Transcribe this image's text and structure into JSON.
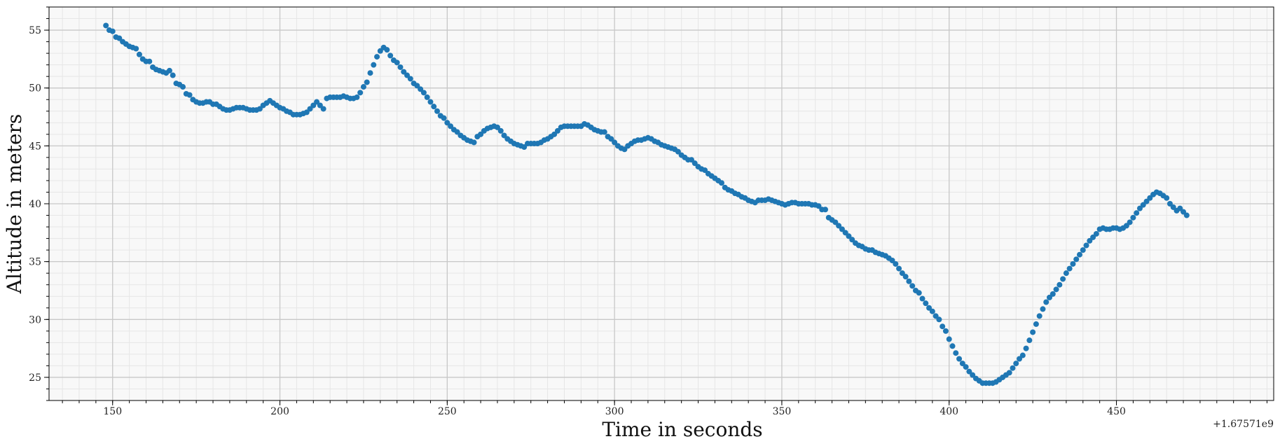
{
  "chart_data": {
    "type": "scatter",
    "xlabel": "Time in seconds",
    "ylabel": "Altitude in meters",
    "x_offset_label": "+1.67571e9",
    "xlim": [
      131,
      497
    ],
    "ylim": [
      23,
      57
    ],
    "x_ticks": [
      150,
      200,
      250,
      300,
      350,
      400,
      450
    ],
    "y_ticks": [
      25,
      30,
      35,
      40,
      45,
      50,
      55
    ],
    "x_minor_step": 5,
    "y_minor_step": 1,
    "grid": true,
    "marker_color": "#1f77b4",
    "background_color": "#f8f8f8",
    "series": [
      {
        "points": [
          [
            148,
            55.4
          ],
          [
            149,
            55.0
          ],
          [
            150,
            54.9
          ],
          [
            151,
            54.4
          ],
          [
            152,
            54.3
          ],
          [
            153,
            54.0
          ],
          [
            154,
            53.8
          ],
          [
            155,
            53.6
          ],
          [
            156,
            53.5
          ],
          [
            157,
            53.4
          ],
          [
            158,
            52.9
          ],
          [
            159,
            52.5
          ],
          [
            160,
            52.3
          ],
          [
            161,
            52.3
          ],
          [
            162,
            51.8
          ],
          [
            163,
            51.6
          ],
          [
            164,
            51.5
          ],
          [
            165,
            51.4
          ],
          [
            166,
            51.3
          ],
          [
            167,
            51.5
          ],
          [
            168,
            51.1
          ],
          [
            169,
            50.4
          ],
          [
            170,
            50.3
          ],
          [
            171,
            50.1
          ],
          [
            172,
            49.5
          ],
          [
            173,
            49.4
          ],
          [
            174,
            49.0
          ],
          [
            175,
            48.8
          ],
          [
            176,
            48.7
          ],
          [
            177,
            48.7
          ],
          [
            178,
            48.8
          ],
          [
            179,
            48.8
          ],
          [
            180,
            48.6
          ],
          [
            181,
            48.6
          ],
          [
            182,
            48.4
          ],
          [
            183,
            48.2
          ],
          [
            184,
            48.1
          ],
          [
            185,
            48.1
          ],
          [
            186,
            48.2
          ],
          [
            187,
            48.3
          ],
          [
            188,
            48.3
          ],
          [
            189,
            48.3
          ],
          [
            190,
            48.2
          ],
          [
            191,
            48.1
          ],
          [
            192,
            48.1
          ],
          [
            193,
            48.1
          ],
          [
            194,
            48.2
          ],
          [
            195,
            48.5
          ],
          [
            196,
            48.7
          ],
          [
            197,
            48.9
          ],
          [
            198,
            48.7
          ],
          [
            199,
            48.5
          ],
          [
            200,
            48.3
          ],
          [
            201,
            48.2
          ],
          [
            202,
            48.0
          ],
          [
            203,
            47.9
          ],
          [
            204,
            47.7
          ],
          [
            205,
            47.7
          ],
          [
            206,
            47.7
          ],
          [
            207,
            47.8
          ],
          [
            208,
            47.9
          ],
          [
            209,
            48.2
          ],
          [
            210,
            48.5
          ],
          [
            211,
            48.8
          ],
          [
            212,
            48.5
          ],
          [
            213,
            48.2
          ],
          [
            214,
            49.1
          ],
          [
            215,
            49.2
          ],
          [
            216,
            49.2
          ],
          [
            217,
            49.2
          ],
          [
            218,
            49.2
          ],
          [
            219,
            49.3
          ],
          [
            220,
            49.2
          ],
          [
            221,
            49.1
          ],
          [
            222,
            49.1
          ],
          [
            223,
            49.2
          ],
          [
            224,
            49.6
          ],
          [
            225,
            50.1
          ],
          [
            226,
            50.5
          ],
          [
            227,
            51.3
          ],
          [
            228,
            52.0
          ],
          [
            229,
            52.7
          ],
          [
            230,
            53.2
          ],
          [
            231,
            53.5
          ],
          [
            232,
            53.3
          ],
          [
            233,
            52.8
          ],
          [
            234,
            52.4
          ],
          [
            235,
            52.2
          ],
          [
            236,
            51.8
          ],
          [
            237,
            51.4
          ],
          [
            238,
            51.1
          ],
          [
            239,
            50.8
          ],
          [
            240,
            50.4
          ],
          [
            241,
            50.2
          ],
          [
            242,
            49.9
          ],
          [
            243,
            49.6
          ],
          [
            244,
            49.2
          ],
          [
            245,
            48.8
          ],
          [
            246,
            48.4
          ],
          [
            247,
            48.0
          ],
          [
            248,
            47.6
          ],
          [
            249,
            47.4
          ],
          [
            250,
            47.0
          ],
          [
            251,
            46.7
          ],
          [
            252,
            46.4
          ],
          [
            253,
            46.2
          ],
          [
            254,
            45.9
          ],
          [
            255,
            45.7
          ],
          [
            256,
            45.5
          ],
          [
            257,
            45.4
          ],
          [
            258,
            45.3
          ],
          [
            259,
            45.8
          ],
          [
            260,
            46.0
          ],
          [
            261,
            46.3
          ],
          [
            262,
            46.5
          ],
          [
            263,
            46.6
          ],
          [
            264,
            46.7
          ],
          [
            265,
            46.6
          ],
          [
            266,
            46.3
          ],
          [
            267,
            45.9
          ],
          [
            268,
            45.6
          ],
          [
            269,
            45.4
          ],
          [
            270,
            45.2
          ],
          [
            271,
            45.1
          ],
          [
            272,
            45.0
          ],
          [
            273,
            44.9
          ],
          [
            274,
            45.2
          ],
          [
            275,
            45.2
          ],
          [
            276,
            45.2
          ],
          [
            277,
            45.2
          ],
          [
            278,
            45.3
          ],
          [
            279,
            45.5
          ],
          [
            280,
            45.6
          ],
          [
            281,
            45.8
          ],
          [
            282,
            46.0
          ],
          [
            283,
            46.3
          ],
          [
            284,
            46.6
          ],
          [
            285,
            46.7
          ],
          [
            286,
            46.7
          ],
          [
            287,
            46.7
          ],
          [
            288,
            46.7
          ],
          [
            289,
            46.7
          ],
          [
            290,
            46.7
          ],
          [
            291,
            46.9
          ],
          [
            292,
            46.8
          ],
          [
            293,
            46.6
          ],
          [
            294,
            46.4
          ],
          [
            295,
            46.3
          ],
          [
            296,
            46.2
          ],
          [
            297,
            46.2
          ],
          [
            298,
            45.8
          ],
          [
            299,
            45.6
          ],
          [
            300,
            45.3
          ],
          [
            301,
            45.0
          ],
          [
            302,
            44.8
          ],
          [
            303,
            44.7
          ],
          [
            304,
            45.0
          ],
          [
            305,
            45.2
          ],
          [
            306,
            45.4
          ],
          [
            307,
            45.5
          ],
          [
            308,
            45.5
          ],
          [
            309,
            45.6
          ],
          [
            310,
            45.7
          ],
          [
            311,
            45.6
          ],
          [
            312,
            45.4
          ],
          [
            313,
            45.3
          ],
          [
            314,
            45.1
          ],
          [
            315,
            45.0
          ],
          [
            316,
            44.9
          ],
          [
            317,
            44.8
          ],
          [
            318,
            44.7
          ],
          [
            319,
            44.5
          ],
          [
            320,
            44.2
          ],
          [
            321,
            44.0
          ],
          [
            322,
            43.8
          ],
          [
            323,
            43.8
          ],
          [
            324,
            43.5
          ],
          [
            325,
            43.2
          ],
          [
            326,
            43.0
          ],
          [
            327,
            42.9
          ],
          [
            328,
            42.6
          ],
          [
            329,
            42.4
          ],
          [
            330,
            42.2
          ],
          [
            331,
            42.0
          ],
          [
            332,
            41.8
          ],
          [
            333,
            41.4
          ],
          [
            334,
            41.2
          ],
          [
            335,
            41.1
          ],
          [
            336,
            40.9
          ],
          [
            337,
            40.8
          ],
          [
            338,
            40.6
          ],
          [
            339,
            40.5
          ],
          [
            340,
            40.3
          ],
          [
            341,
            40.2
          ],
          [
            342,
            40.1
          ],
          [
            343,
            40.3
          ],
          [
            344,
            40.3
          ],
          [
            345,
            40.3
          ],
          [
            346,
            40.4
          ],
          [
            347,
            40.3
          ],
          [
            348,
            40.2
          ],
          [
            349,
            40.1
          ],
          [
            350,
            40.0
          ],
          [
            351,
            39.9
          ],
          [
            352,
            40.0
          ],
          [
            353,
            40.1
          ],
          [
            354,
            40.1
          ],
          [
            355,
            40.0
          ],
          [
            356,
            40.0
          ],
          [
            357,
            40.0
          ],
          [
            358,
            40.0
          ],
          [
            359,
            39.9
          ],
          [
            360,
            39.9
          ],
          [
            361,
            39.8
          ],
          [
            362,
            39.5
          ],
          [
            363,
            39.5
          ],
          [
            364,
            38.8
          ],
          [
            365,
            38.6
          ],
          [
            366,
            38.4
          ],
          [
            367,
            38.1
          ],
          [
            368,
            37.8
          ],
          [
            369,
            37.5
          ],
          [
            370,
            37.2
          ],
          [
            371,
            36.9
          ],
          [
            372,
            36.6
          ],
          [
            373,
            36.4
          ],
          [
            374,
            36.3
          ],
          [
            375,
            36.1
          ],
          [
            376,
            36.0
          ],
          [
            377,
            36.0
          ],
          [
            378,
            35.8
          ],
          [
            379,
            35.7
          ],
          [
            380,
            35.6
          ],
          [
            381,
            35.5
          ],
          [
            382,
            35.3
          ],
          [
            383,
            35.1
          ],
          [
            384,
            34.8
          ],
          [
            385,
            34.4
          ],
          [
            386,
            34.0
          ],
          [
            387,
            33.7
          ],
          [
            388,
            33.3
          ],
          [
            389,
            32.9
          ],
          [
            390,
            32.5
          ],
          [
            391,
            32.3
          ],
          [
            392,
            31.8
          ],
          [
            393,
            31.4
          ],
          [
            394,
            31.0
          ],
          [
            395,
            30.7
          ],
          [
            396,
            30.3
          ],
          [
            397,
            30.0
          ],
          [
            398,
            29.4
          ],
          [
            399,
            29.0
          ],
          [
            400,
            28.3
          ],
          [
            401,
            27.7
          ],
          [
            402,
            27.1
          ],
          [
            403,
            26.6
          ],
          [
            404,
            26.2
          ],
          [
            405,
            25.9
          ],
          [
            406,
            25.5
          ],
          [
            407,
            25.2
          ],
          [
            408,
            24.9
          ],
          [
            409,
            24.7
          ],
          [
            410,
            24.5
          ],
          [
            411,
            24.5
          ],
          [
            412,
            24.5
          ],
          [
            413,
            24.5
          ],
          [
            414,
            24.6
          ],
          [
            415,
            24.8
          ],
          [
            416,
            25.0
          ],
          [
            417,
            25.2
          ],
          [
            418,
            25.4
          ],
          [
            419,
            25.8
          ],
          [
            420,
            26.2
          ],
          [
            421,
            26.6
          ],
          [
            422,
            26.9
          ],
          [
            423,
            27.5
          ],
          [
            424,
            28.2
          ],
          [
            425,
            28.9
          ],
          [
            426,
            29.6
          ],
          [
            427,
            30.3
          ],
          [
            428,
            30.9
          ],
          [
            429,
            31.5
          ],
          [
            430,
            31.9
          ],
          [
            431,
            32.2
          ],
          [
            432,
            32.6
          ],
          [
            433,
            33.0
          ],
          [
            434,
            33.5
          ],
          [
            435,
            34.0
          ],
          [
            436,
            34.4
          ],
          [
            437,
            34.8
          ],
          [
            438,
            35.2
          ],
          [
            439,
            35.6
          ],
          [
            440,
            36.0
          ],
          [
            441,
            36.4
          ],
          [
            442,
            36.8
          ],
          [
            443,
            37.1
          ],
          [
            444,
            37.4
          ],
          [
            445,
            37.8
          ],
          [
            446,
            37.9
          ],
          [
            447,
            37.8
          ],
          [
            448,
            37.8
          ],
          [
            449,
            37.9
          ],
          [
            450,
            37.9
          ],
          [
            451,
            37.8
          ],
          [
            452,
            37.9
          ],
          [
            453,
            38.1
          ],
          [
            454,
            38.4
          ],
          [
            455,
            38.8
          ],
          [
            456,
            39.2
          ],
          [
            457,
            39.6
          ],
          [
            458,
            39.9
          ],
          [
            459,
            40.2
          ],
          [
            460,
            40.5
          ],
          [
            461,
            40.8
          ],
          [
            462,
            41.0
          ],
          [
            463,
            40.9
          ],
          [
            464,
            40.7
          ],
          [
            465,
            40.5
          ],
          [
            466,
            40.0
          ],
          [
            467,
            39.7
          ],
          [
            468,
            39.4
          ],
          [
            469,
            39.6
          ],
          [
            470,
            39.3
          ],
          [
            471,
            39.0
          ]
        ]
      }
    ]
  }
}
